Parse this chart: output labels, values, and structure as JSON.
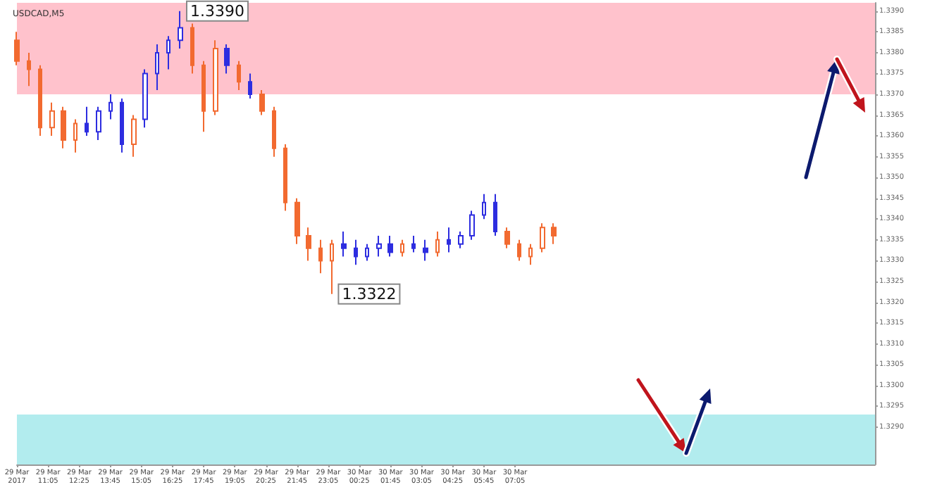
{
  "chart_data": {
    "type": "candlestick",
    "title": "USDCAD,M5",
    "series": [
      {
        "color": "#f26a30",
        "x": [
          "2017-03-29T09:45",
          "2017-03-29T10:15",
          "2017-03-29T10:45",
          "2017-03-29T11:15",
          "2017-03-29T11:45",
          "2017-03-29T12:15",
          "2017-03-29T14:45",
          "2017-03-29T17:15",
          "2017-03-29T17:45",
          "2017-03-29T18:15",
          "2017-03-29T19:15",
          "2017-03-29T20:15",
          "2017-03-29T20:45",
          "2017-03-29T21:15",
          "2017-03-29T21:45",
          "2017-03-29T22:15",
          "2017-03-29T22:45",
          "2017-03-29T23:15",
          "2017-03-30T02:15",
          "2017-03-30T03:45",
          "2017-03-30T06:45",
          "2017-03-30T07:15",
          "2017-03-30T07:45",
          "2017-03-30T08:15",
          "2017-03-30T08:45"
        ],
        "ohlc": [
          [
            1.3383,
            1.3385,
            1.3377,
            1.3378
          ],
          [
            1.3378,
            1.338,
            1.3372,
            1.3376
          ],
          [
            1.3376,
            1.3377,
            1.336,
            1.3362
          ],
          [
            1.3362,
            1.3368,
            1.336,
            1.3366
          ],
          [
            1.3366,
            1.3367,
            1.3357,
            1.3359
          ],
          [
            1.3359,
            1.3364,
            1.3356,
            1.3363
          ],
          [
            1.3358,
            1.3365,
            1.3355,
            1.3364
          ],
          [
            1.3386,
            1.3387,
            1.3375,
            1.3377
          ],
          [
            1.3377,
            1.3378,
            1.3361,
            1.3366
          ],
          [
            1.3366,
            1.3383,
            1.3365,
            1.3381
          ],
          [
            1.3377,
            1.3378,
            1.3371,
            1.3373
          ],
          [
            1.337,
            1.3371,
            1.3365,
            1.3366
          ],
          [
            1.3366,
            1.3367,
            1.3355,
            1.3357
          ],
          [
            1.3357,
            1.3358,
            1.3342,
            1.3344
          ],
          [
            1.3344,
            1.3345,
            1.3334,
            1.3336
          ],
          [
            1.3336,
            1.3338,
            1.333,
            1.3333
          ],
          [
            1.3333,
            1.3335,
            1.3327,
            1.333
          ],
          [
            1.333,
            1.3335,
            1.3322,
            1.3334
          ],
          [
            1.3332,
            1.3335,
            1.3331,
            1.3334
          ],
          [
            1.3332,
            1.3337,
            1.3331,
            1.3335
          ],
          [
            1.3337,
            1.3338,
            1.3333,
            1.3334
          ],
          [
            1.3334,
            1.3335,
            1.333,
            1.3331
          ],
          [
            1.3331,
            1.3334,
            1.3329,
            1.3333
          ],
          [
            1.3333,
            1.3339,
            1.3332,
            1.3338
          ],
          [
            1.3338,
            1.3339,
            1.3334,
            1.3336
          ]
        ]
      },
      {
        "color": "#2d2de0",
        "x": [
          "2017-03-29T12:45",
          "2017-03-29T13:15",
          "2017-03-29T13:45",
          "2017-03-29T14:15",
          "2017-03-29T15:15",
          "2017-03-29T15:45",
          "2017-03-29T16:15",
          "2017-03-29T16:45",
          "2017-03-29T18:45",
          "2017-03-29T19:45",
          "2017-03-29T23:45",
          "2017-03-30T00:15",
          "2017-03-30T00:45",
          "2017-03-30T01:15",
          "2017-03-30T01:45",
          "2017-03-30T02:45",
          "2017-03-30T03:15",
          "2017-03-30T04:15",
          "2017-03-30T04:45",
          "2017-03-30T05:15",
          "2017-03-30T05:45",
          "2017-03-30T06:15"
        ],
        "ohlc": [
          [
            1.3363,
            1.3367,
            1.336,
            1.3361
          ],
          [
            1.3361,
            1.3367,
            1.3359,
            1.3366
          ],
          [
            1.3366,
            1.337,
            1.3364,
            1.3368
          ],
          [
            1.3368,
            1.3369,
            1.3356,
            1.3358
          ],
          [
            1.3364,
            1.3376,
            1.3362,
            1.3375
          ],
          [
            1.3375,
            1.3382,
            1.3371,
            1.338
          ],
          [
            1.338,
            1.3384,
            1.3376,
            1.3383
          ],
          [
            1.3383,
            1.339,
            1.3381,
            1.3386
          ],
          [
            1.3381,
            1.3382,
            1.3375,
            1.3377
          ],
          [
            1.3373,
            1.3375,
            1.3369,
            1.337
          ],
          [
            1.3334,
            1.3337,
            1.3331,
            1.3333
          ],
          [
            1.3333,
            1.3335,
            1.3329,
            1.3331
          ],
          [
            1.3331,
            1.3334,
            1.333,
            1.3333
          ],
          [
            1.3333,
            1.3336,
            1.3331,
            1.3334
          ],
          [
            1.3334,
            1.3336,
            1.3331,
            1.3332
          ],
          [
            1.3334,
            1.3336,
            1.3332,
            1.3333
          ],
          [
            1.3333,
            1.3335,
            1.333,
            1.3332
          ],
          [
            1.3335,
            1.3338,
            1.3332,
            1.3334
          ],
          [
            1.3334,
            1.3337,
            1.3333,
            1.3336
          ],
          [
            1.3336,
            1.3342,
            1.3335,
            1.3341
          ],
          [
            1.3341,
            1.3346,
            1.334,
            1.3344
          ],
          [
            1.3344,
            1.3346,
            1.3336,
            1.3337
          ]
        ]
      }
    ],
    "xlim": [
      "2017-03-29T09:45",
      "2017-03-30T22:30"
    ],
    "xticks": [
      {
        "value": "2017-03-29T09:45",
        "label": "29 Mar 2017"
      },
      {
        "value": "2017-03-29T11:05",
        "label": "29 Mar 11:05"
      },
      {
        "value": "2017-03-29T12:25",
        "label": "29 Mar 12:25"
      },
      {
        "value": "2017-03-29T13:45",
        "label": "29 Mar 13:45"
      },
      {
        "value": "2017-03-29T15:05",
        "label": "29 Mar 15:05"
      },
      {
        "value": "2017-03-29T16:25",
        "label": "29 Mar 16:25"
      },
      {
        "value": "2017-03-29T17:45",
        "label": "29 Mar 17:45"
      },
      {
        "value": "2017-03-29T19:05",
        "label": "29 Mar 19:05"
      },
      {
        "value": "2017-03-29T20:25",
        "label": "29 Mar 20:25"
      },
      {
        "value": "2017-03-29T21:45",
        "label": "29 Mar 21:45"
      },
      {
        "value": "2017-03-29T23:05",
        "label": "29 Mar 23:05"
      },
      {
        "value": "2017-03-30T00:25",
        "label": "30 Mar 00:25"
      },
      {
        "value": "2017-03-30T01:45",
        "label": "30 Mar 01:45"
      },
      {
        "value": "2017-03-30T03:05",
        "label": "30 Mar 03:05"
      },
      {
        "value": "2017-03-30T04:25",
        "label": "30 Mar 04:25"
      },
      {
        "value": "2017-03-30T05:45",
        "label": "30 Mar 05:45"
      },
      {
        "value": "2017-03-30T07:05",
        "label": "30 Mar 07:05"
      }
    ],
    "ylim": [
      1.3281,
      1.3392
    ],
    "yticks": [
      {
        "value": 1.329,
        "label": "1.3290"
      },
      {
        "value": 1.3295,
        "label": "1.3295"
      },
      {
        "value": 1.33,
        "label": "1.3300"
      },
      {
        "value": 1.3305,
        "label": "1.3305"
      },
      {
        "value": 1.331,
        "label": "1.3310"
      },
      {
        "value": 1.3315,
        "label": "1.3315"
      },
      {
        "value": 1.332,
        "label": "1.3320"
      },
      {
        "value": 1.3325,
        "label": "1.3325"
      },
      {
        "value": 1.333,
        "label": "1.3330"
      },
      {
        "value": 1.3335,
        "label": "1.3335"
      },
      {
        "value": 1.334,
        "label": "1.3340"
      },
      {
        "value": 1.3345,
        "label": "1.3345"
      },
      {
        "value": 1.335,
        "label": "1.3350"
      },
      {
        "value": 1.3355,
        "label": "1.3355"
      },
      {
        "value": 1.336,
        "label": "1.3360"
      },
      {
        "value": 1.3365,
        "label": "1.3365"
      },
      {
        "value": 1.337,
        "label": "1.3370"
      },
      {
        "value": 1.3375,
        "label": "1.3375"
      },
      {
        "value": 1.338,
        "label": "1.3380"
      },
      {
        "value": 1.3385,
        "label": "1.3385"
      },
      {
        "value": 1.339,
        "label": "1.3390"
      }
    ],
    "bands": [
      {
        "axis": "y",
        "from": 1.337,
        "to": 1.3392,
        "color": "#ffc2cc"
      },
      {
        "axis": "y",
        "from": 1.3281,
        "to": 1.3293,
        "color": "#b2ecee"
      }
    ],
    "annotations": [
      {
        "text": "1.3390",
        "x": "2017-03-29T16:45",
        "y": 1.339
      },
      {
        "text": "1.3322",
        "x": "2017-03-29T23:15",
        "y": 1.3322
      }
    ]
  }
}
